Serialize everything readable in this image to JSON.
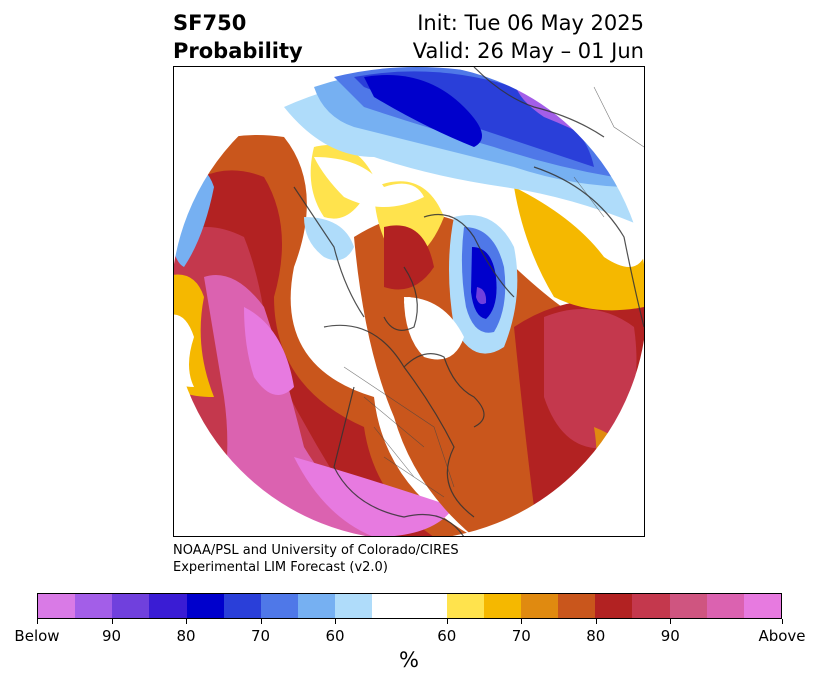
{
  "title": {
    "line1": "SF750",
    "line2": "Probability",
    "init": "Init: Tue 06 May 2025",
    "valid": "Valid: 26 May – 01 Jun"
  },
  "credit": {
    "line1": "NOAA/PSL and University of Colorado/CIRES",
    "line2": "Experimental LIM Forecast (v2.0)"
  },
  "colorbar": {
    "colors": [
      "#d97ae6",
      "#a35ee8",
      "#7040dd",
      "#3a1cd4",
      "#0000cc",
      "#2a3fd9",
      "#4f78e8",
      "#76b0f2",
      "#afdcfa",
      "#ffffff",
      "#ffe34d",
      "#f5b800",
      "#e08a10",
      "#c9561c",
      "#b22222",
      "#c4384d",
      "#cf5580",
      "#db62b0",
      "#e77ae0"
    ],
    "tick_labels": [
      "Below",
      "90",
      "80",
      "70",
      "60",
      "60",
      "70",
      "80",
      "90",
      "Above"
    ],
    "unit_label": "%"
  },
  "map": {
    "projection": "north-polar-stereographic",
    "regions": [
      "north-pacific",
      "north-america",
      "arctic",
      "eurasia",
      "north-atlantic"
    ]
  }
}
